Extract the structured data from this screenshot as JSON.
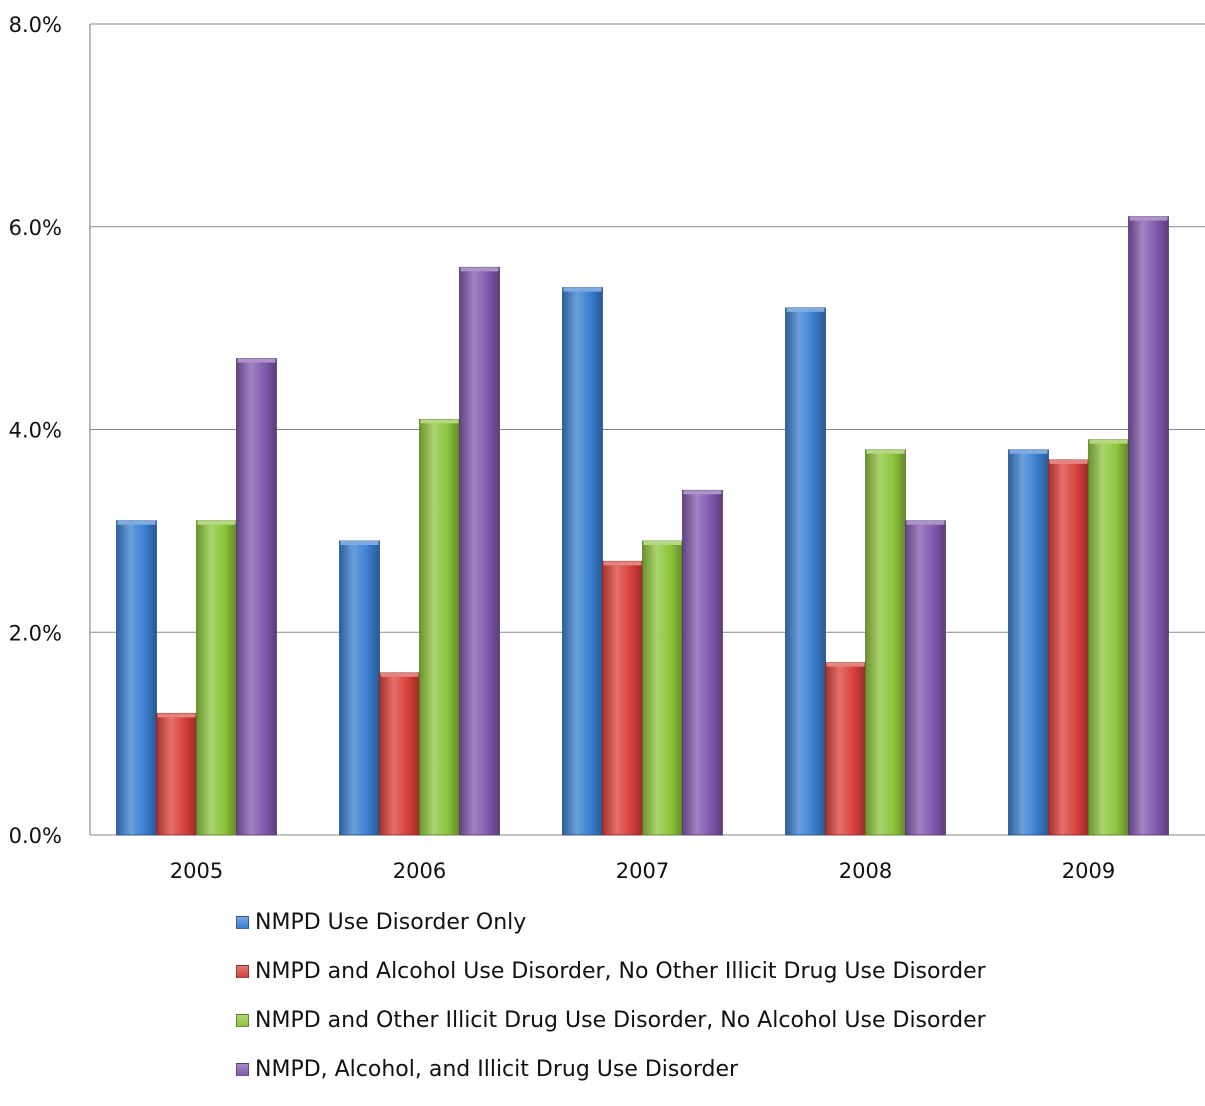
{
  "chart_data": {
    "type": "bar",
    "title": "",
    "xlabel": "",
    "ylabel": "",
    "categories": [
      "2005",
      "2006",
      "2007",
      "2008",
      "2009"
    ],
    "ylim": [
      0,
      8
    ],
    "yticks": [
      0,
      2,
      4,
      6,
      8
    ],
    "ytick_labels": [
      "0.0%",
      "2.0%",
      "4.0%",
      "6.0%",
      "8.0%"
    ],
    "grid": true,
    "legend_position": "bottom",
    "series": [
      {
        "name": "NMPD Use Disorder Only",
        "color": "#3a7fd0",
        "values": [
          3.1,
          2.9,
          5.4,
          5.2,
          3.8
        ]
      },
      {
        "name": "NMPD and Alcohol Use Disorder, No Other Illicit Drug Use Disorder",
        "color": "#d9403a",
        "values": [
          1.2,
          1.6,
          2.7,
          1.7,
          3.7
        ]
      },
      {
        "name": "NMPD and Other Illicit Drug Use Disorder, No Alcohol Use Disorder",
        "color": "#8dc43c",
        "values": [
          3.1,
          4.1,
          2.9,
          3.8,
          3.9
        ]
      },
      {
        "name": "NMPD, Alcohol, and Illicit Drug Use Disorder",
        "color": "#8159ae",
        "values": [
          4.7,
          5.6,
          3.4,
          3.1,
          6.1
        ]
      }
    ]
  }
}
